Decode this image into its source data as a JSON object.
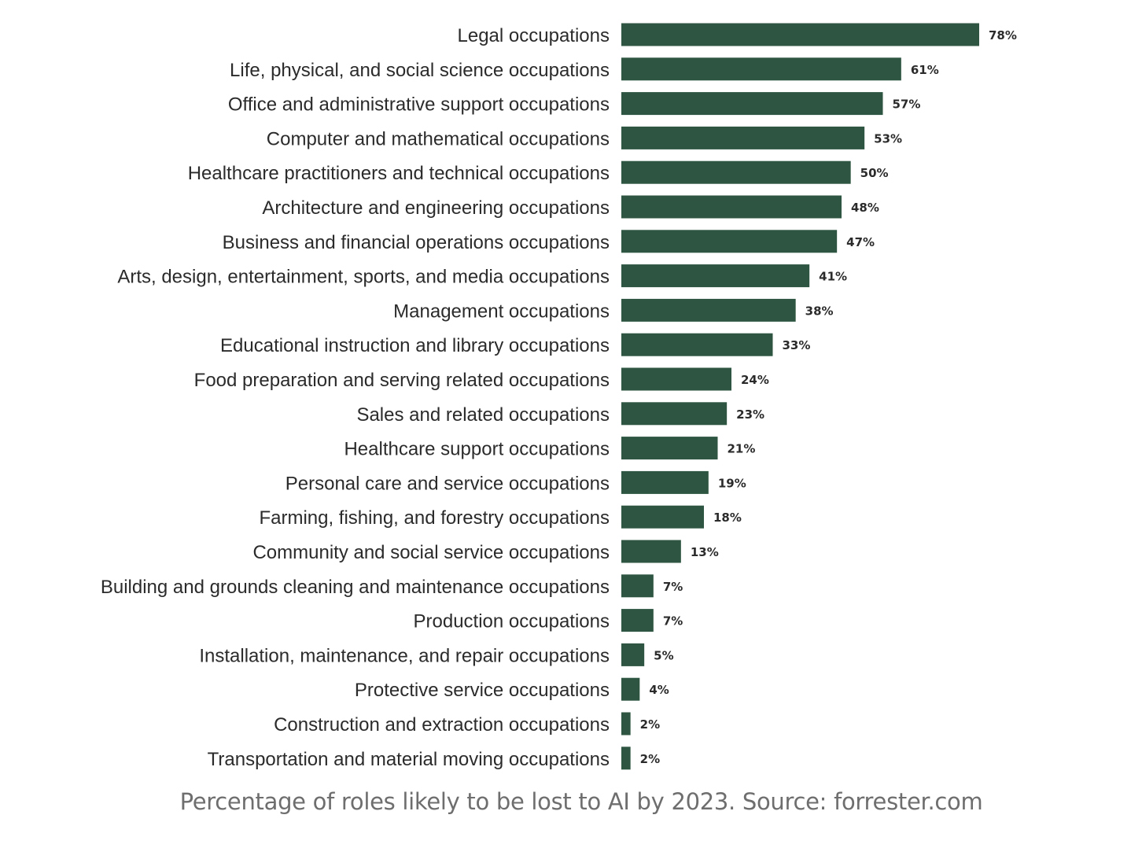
{
  "chart_data": {
    "type": "bar",
    "orientation": "horizontal",
    "title": "",
    "xlabel": "",
    "ylabel": "",
    "xlim": [
      0,
      78
    ],
    "grid": false,
    "bar_color": "#2e5541",
    "categories": [
      "Legal occupations",
      "Life, physical, and social science occupations",
      "Office and administrative support occupations",
      "Computer and mathematical occupations",
      "Healthcare practitioners and technical occupations",
      "Architecture and engineering occupations",
      "Business and financial operations occupations",
      "Arts, design, entertainment, sports, and media occupations",
      "Management occupations",
      "Educational instruction and library occupations",
      "Food preparation and serving related occupations",
      "Sales and related occupations",
      "Healthcare support occupations",
      "Personal care and service occupations",
      "Farming, fishing, and forestry occupations",
      "Community and social service occupations",
      "Building and grounds cleaning and maintenance occupations",
      "Production occupations",
      "Installation, maintenance, and repair occupations",
      "Protective service occupations",
      "Construction and extraction occupations",
      "Transportation and material moving occupations"
    ],
    "values": [
      78,
      61,
      57,
      53,
      50,
      48,
      47,
      41,
      38,
      33,
      24,
      23,
      21,
      19,
      18,
      13,
      7,
      7,
      5,
      4,
      2,
      2
    ],
    "value_labels": [
      "78%",
      "61%",
      "57%",
      "53%",
      "50%",
      "48%",
      "47%",
      "41%",
      "38%",
      "33%",
      "24%",
      "23%",
      "21%",
      "19%",
      "18%",
      "13%",
      "7%",
      "7%",
      "5%",
      "4%",
      "2%",
      "2%"
    ]
  },
  "caption": "Percentage of roles likely to be lost to AI by 2023. Source: forrester.com"
}
